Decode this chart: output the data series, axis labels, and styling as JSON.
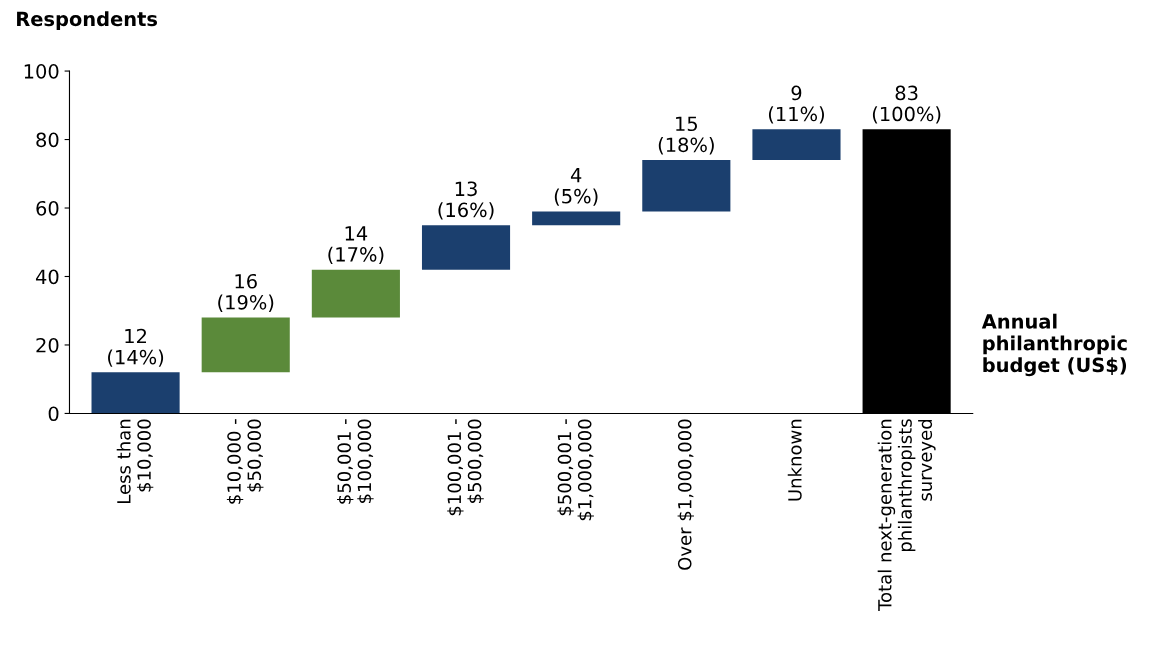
{
  "chart_data": {
    "type": "bar",
    "ylabel": "Respondents",
    "xlabel": "Annual philanthropic budget (US$)",
    "categories": [
      "Less than\n$10,000",
      "$10,000 -\n$50,000",
      "$50,001 -\n$100,000",
      "$100,001 -\n$500,000",
      "$500,001 -\n$1,000,000",
      "Over $1,000,000",
      "Unknown",
      "Total next-generation\nphilanthropists\nsurveyed"
    ],
    "values": [
      12,
      16,
      14,
      13,
      4,
      15,
      9,
      83
    ],
    "base": [
      0,
      12,
      28,
      42,
      55,
      59,
      74,
      0
    ],
    "colors": [
      "#1b3f6e",
      "#5b8a3a",
      "#5b8a3a",
      "#1b3f6e",
      "#1b3f6e",
      "#1b3f6e",
      "#1b3f6e",
      "#000000"
    ],
    "value_labels": [
      "12\n(14%)",
      "16\n(19%)",
      "14\n(17%)",
      "13\n(16%)",
      "4\n(5%)",
      "15\n(18%)",
      "9\n(11%)",
      "83\n(100%)"
    ],
    "ylim": [
      0,
      100
    ],
    "yticks": [
      0,
      20,
      40,
      60,
      80,
      100
    ],
    "grid": false,
    "legend": false
  }
}
